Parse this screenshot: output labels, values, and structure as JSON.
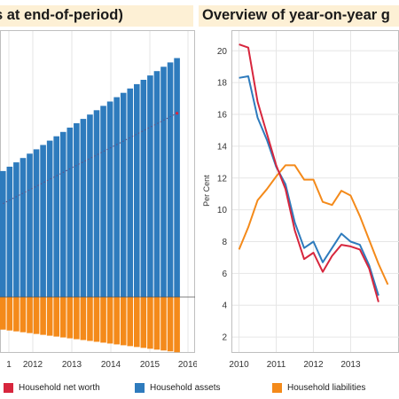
{
  "titles": {
    "left": "s at end-of-period)",
    "right": "Overview of year-on-year g"
  },
  "colors": {
    "net_worth": "#d7263d",
    "assets": "#2e7bbd",
    "liabilities": "#f48a1a",
    "grid": "#e6e6e6",
    "title_bg": "#fdf0d5"
  },
  "legend": {
    "net_worth": "Household net worth",
    "assets": "Household assets",
    "liabilities": "Household liabilities"
  },
  "chart_data": [
    {
      "type": "bar",
      "title": "s at end-of-period)",
      "x_ticks": [
        "2012",
        "2013",
        "2014",
        "2015",
        "2016"
      ],
      "x_tick_first_partial": "1",
      "series": [
        {
          "name": "Household assets",
          "values": [
            29,
            30,
            31,
            32,
            33,
            34,
            35,
            36,
            37,
            38,
            39,
            40,
            41,
            42,
            43,
            44,
            45,
            46,
            47,
            48,
            49,
            50,
            51,
            52,
            53,
            54,
            55
          ]
        },
        {
          "name": "Household liabilities",
          "values": [
            -7.5,
            -7.7,
            -7.9,
            -8.1,
            -8.3,
            -8.5,
            -8.7,
            -8.9,
            -9.1,
            -9.3,
            -9.5,
            -9.7,
            -9.9,
            -10.1,
            -10.3,
            -10.5,
            -10.7,
            -10.9,
            -11.1,
            -11.3,
            -11.5,
            -11.7,
            -11.9,
            -12.1,
            -12.3,
            -12.5,
            -12.7
          ]
        },
        {
          "name": "Household net worth",
          "values": [
            21.5,
            22.3,
            23.1,
            23.9,
            24.7,
            25.5,
            26.3,
            27.1,
            27.9,
            28.7,
            29.5,
            30.3,
            31.1,
            31.9,
            32.7,
            33.5,
            34.3,
            35.1,
            35.9,
            36.7,
            37.5,
            38.3,
            39.1,
            39.9,
            40.7,
            41.5,
            42.3
          ]
        }
      ]
    },
    {
      "type": "line",
      "title": "Overview of year-on-year g",
      "ylabel": "Per Cent",
      "ylim": [
        1,
        21.3
      ],
      "y_ticks": [
        2,
        4,
        6,
        8,
        10,
        12,
        14,
        16,
        18,
        20
      ],
      "x_ticks": [
        "2010",
        "2011",
        "2012",
        "2013"
      ],
      "x_range": [
        2009.82,
        2014.3
      ],
      "series": [
        {
          "name": "Household net worth",
          "x": [
            2010.0,
            2010.25,
            2010.5,
            2010.75,
            2011.0,
            2011.25,
            2011.5,
            2011.75,
            2012.0,
            2012.25,
            2012.5,
            2012.75,
            2013.0,
            2013.25,
            2013.5,
            2013.75
          ],
          "values": [
            20.4,
            20.2,
            16.8,
            14.8,
            12.8,
            11.3,
            8.7,
            6.9,
            7.3,
            6.1,
            7.1,
            7.8,
            7.7,
            7.5,
            6.3,
            4.2
          ]
        },
        {
          "name": "Household assets",
          "x": [
            2010.0,
            2010.25,
            2010.5,
            2010.75,
            2011.0,
            2011.25,
            2011.5,
            2011.75,
            2012.0,
            2012.25,
            2012.5,
            2012.75,
            2013.0,
            2013.25,
            2013.5,
            2013.75
          ],
          "values": [
            18.3,
            18.4,
            15.8,
            14.4,
            12.7,
            11.6,
            9.2,
            7.6,
            8.0,
            6.7,
            7.6,
            8.5,
            8.0,
            7.8,
            6.5,
            4.6
          ]
        },
        {
          "name": "Household liabilities",
          "x": [
            2010.0,
            2010.25,
            2010.5,
            2010.75,
            2011.0,
            2011.25,
            2011.5,
            2011.75,
            2012.0,
            2012.25,
            2012.5,
            2012.75,
            2013.0,
            2013.25,
            2013.5,
            2013.75,
            2014.0
          ],
          "values": [
            7.5,
            8.9,
            10.6,
            11.3,
            12.1,
            12.8,
            12.8,
            11.9,
            11.9,
            10.5,
            10.3,
            11.2,
            10.9,
            9.6,
            8.1,
            6.6,
            5.3
          ]
        }
      ]
    }
  ]
}
